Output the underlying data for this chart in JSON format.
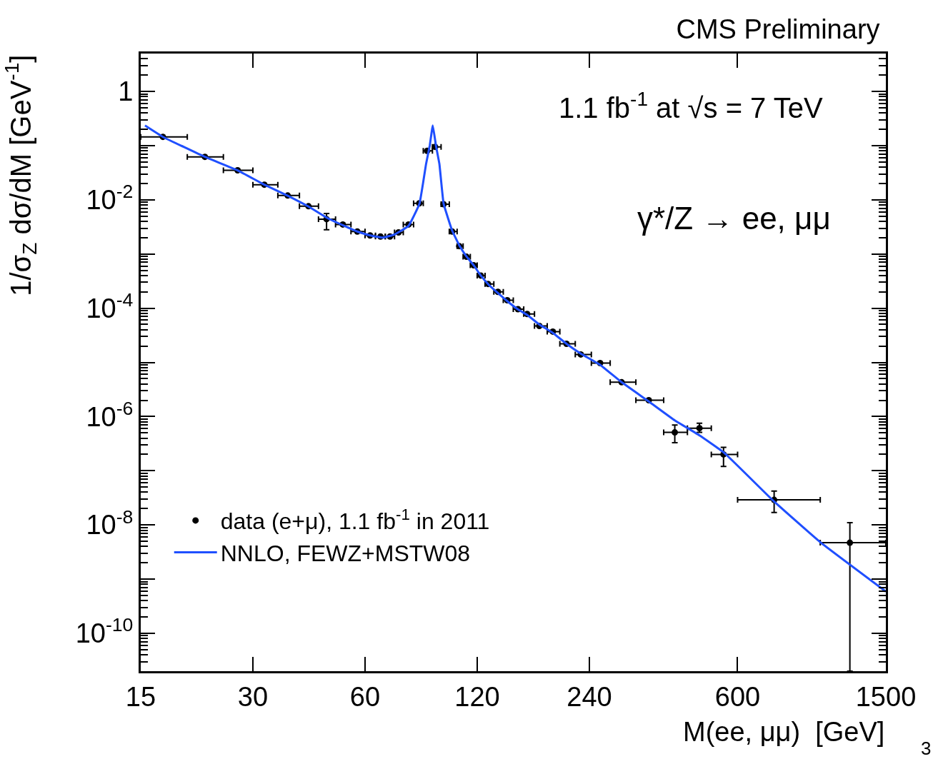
{
  "chart_data": {
    "type": "scatter",
    "title": "CMS Preliminary",
    "xlabel": "M(ee, μμ)  [GeV]",
    "ylabel": "1/σ$_{Z}$ dσ/dM [GeV$^{-1}$]",
    "annotations": [
      "1.1 fb$^{-1}$ at √s = 7 TeV",
      "γ*/Z → ee, μμ",
      "3"
    ],
    "log": "xy",
    "xlim": [
      15,
      1500
    ],
    "ylim": [
      2e-11,
      5
    ],
    "xticks": [
      15,
      30,
      60,
      120,
      240,
      600,
      1500
    ],
    "yticks": [
      {
        "value": 1,
        "label": "1"
      },
      {
        "value": 0.1,
        "label": null
      },
      {
        "value": 0.01,
        "label": "10$^{-2}$"
      },
      {
        "value": 0.001,
        "label": null
      },
      {
        "value": 0.0001,
        "label": "10$^{-4}$"
      },
      {
        "value": 1e-05,
        "label": null
      },
      {
        "value": 1e-06,
        "label": "10$^{-6}$"
      },
      {
        "value": 1e-07,
        "label": null
      },
      {
        "value": 1e-08,
        "label": "10$^{-8}$"
      },
      {
        "value": 1e-09,
        "label": null
      },
      {
        "value": 1e-10,
        "label": "10$^{-10}$"
      }
    ],
    "legend": "bottom left",
    "series": [
      {
        "name": "data (e+μ), 1.1 fb$^{-1}$ in 2011",
        "color": "#000000",
        "marker": "circle",
        "x": [
          17.2,
          22.3,
          27.3,
          32.2,
          37.2,
          42.3,
          47.3,
          52.3,
          57.2,
          61.9,
          66,
          70,
          73.8,
          78.5,
          83.9,
          88.1,
          92.5,
          97.5,
          102.8,
          107.4,
          112.3,
          117.4,
          122.7,
          128.3,
          136.4,
          144.5,
          154.4,
          163.4,
          176.2,
          191.5,
          208.4,
          227.6,
          256.5,
          293,
          346.5,
          407,
          474,
          550,
          752,
          1201
        ],
        "values": [
          0.145,
          0.062,
          0.035,
          0.019,
          0.012,
          0.0076,
          0.0044,
          0.0035,
          0.0026,
          0.0022,
          0.0021,
          0.0021,
          0.0025,
          0.0035,
          0.0086,
          0.08,
          0.095,
          0.0083,
          0.0026,
          0.0014,
          0.00089,
          0.00062,
          0.0004,
          0.00028,
          0.0002,
          0.00014,
          9.6e-05,
          7.8e-05,
          4.7e-05,
          3.7e-05,
          2.2e-05,
          1.4e-05,
          9.7e-06,
          4.3e-06,
          2e-06,
          5.1e-07,
          6.1e-07,
          2e-07,
          2.9e-08,
          4.7e-09
        ],
        "errors": [
          null,
          null,
          null,
          null,
          null,
          null,
          [
            0.0028,
            0.0056
          ],
          null,
          null,
          null,
          null,
          null,
          null,
          null,
          null,
          null,
          null,
          null,
          null,
          null,
          null,
          null,
          null,
          null,
          null,
          null,
          null,
          null,
          null,
          null,
          null,
          null,
          null,
          null,
          null,
          [
            3.3e-07,
            7e-07
          ],
          [
            5.1e-07,
            7.5e-07
          ],
          [
            1.2e-07,
            2.7e-07
          ],
          [
            1.7e-08,
            4.2e-08
          ],
          [
            2e-11,
            1.1e-08
          ]
        ],
        "xerrors": [
          [
            15,
            20
          ],
          [
            20,
            25
          ],
          [
            25,
            30
          ],
          [
            30,
            35
          ],
          [
            35,
            40
          ],
          [
            40,
            45
          ],
          [
            45,
            50
          ],
          [
            50,
            55
          ],
          [
            55,
            60
          ],
          [
            60,
            64
          ],
          [
            64,
            68
          ],
          [
            68,
            72
          ],
          [
            72,
            76
          ],
          [
            76,
            81
          ],
          [
            81,
            86
          ],
          [
            86,
            91
          ],
          [
            91,
            96
          ],
          [
            96,
            101
          ],
          [
            101,
            106
          ],
          [
            106,
            110
          ],
          [
            110,
            115
          ],
          [
            115,
            120
          ],
          [
            120,
            126
          ],
          [
            126,
            133
          ],
          [
            133,
            141
          ],
          [
            141,
            150
          ],
          [
            150,
            160
          ],
          [
            160,
            171
          ],
          [
            171,
            185
          ],
          [
            185,
            200
          ],
          [
            200,
            220
          ],
          [
            220,
            243
          ],
          [
            243,
            273
          ],
          [
            273,
            320
          ],
          [
            320,
            380
          ],
          [
            380,
            440
          ],
          [
            440,
            510
          ],
          [
            510,
            600
          ],
          [
            600,
            1000
          ],
          [
            1000,
            1500
          ]
        ]
      },
      {
        "type": "line",
        "name": "NNLO, FEWZ+MSTW08",
        "color": "#1f4fff",
        "x": [
          15.4,
          17.2,
          22.3,
          27.3,
          32.2,
          37.2,
          42.3,
          47.3,
          52.3,
          57.2,
          62,
          67,
          72,
          78.5,
          84,
          87.5,
          89.5,
          91.2,
          93,
          95,
          97.5,
          102.8,
          107.4,
          112.3,
          117.4,
          122.7,
          128.3,
          136.4,
          144.5,
          154.4,
          163.4,
          176.2,
          191.5,
          208.4,
          227.6,
          256.5,
          293,
          346.5,
          407,
          474,
          550,
          752,
          1000,
          1500
        ],
        "values": [
          0.235,
          0.145,
          0.062,
          0.035,
          0.019,
          0.0119,
          0.0075,
          0.0047,
          0.0034,
          0.0026,
          0.0022,
          0.002,
          0.0023,
          0.0033,
          0.0085,
          0.046,
          0.1,
          0.235,
          0.1,
          0.046,
          0.0085,
          0.0027,
          0.00145,
          0.0009,
          0.00062,
          0.0004,
          0.00028,
          0.00019,
          0.000135,
          9.5e-05,
          7.5e-05,
          5e-05,
          3.5e-05,
          2.2e-05,
          1.45e-05,
          9e-06,
          4.3e-06,
          1.9e-06,
          8.5e-07,
          4.5e-07,
          2.2e-07,
          2.7e-08,
          4.8e-09,
          5.9e-10
        ]
      }
    ]
  }
}
